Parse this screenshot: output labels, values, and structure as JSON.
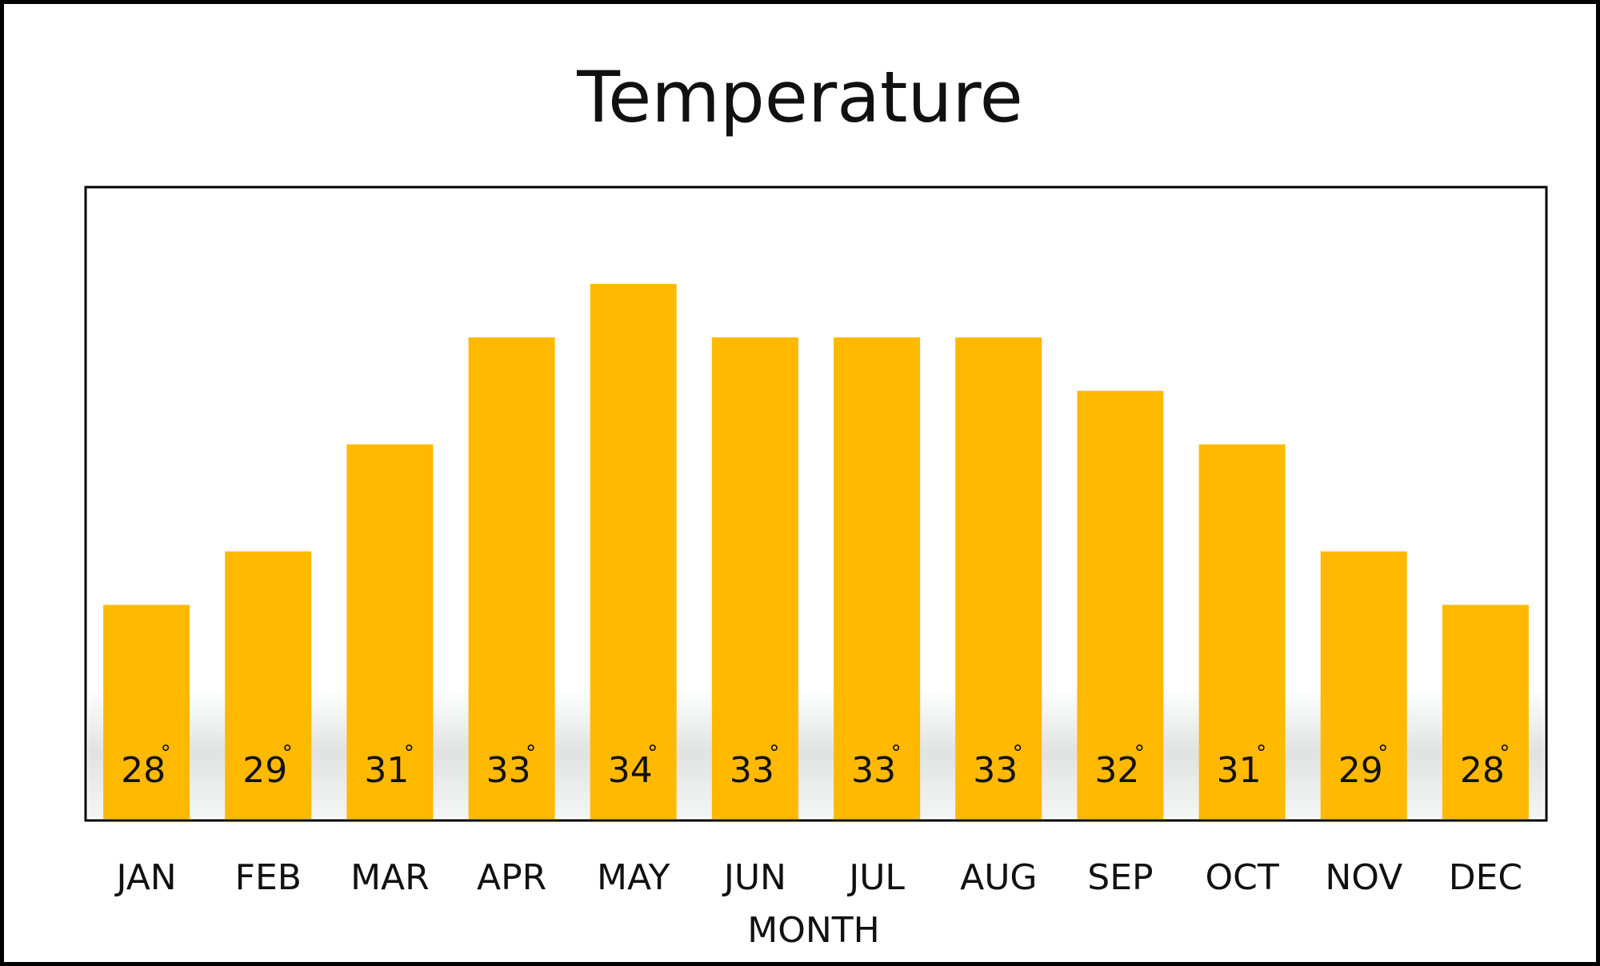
{
  "chart_data": {
    "type": "bar",
    "title": "Temperature",
    "xlabel": "MONTH",
    "ylabel": "",
    "categories": [
      "JAN",
      "FEB",
      "MAR",
      "APR",
      "MAY",
      "JUN",
      "JUL",
      "AUG",
      "SEP",
      "OCT",
      "NOV",
      "DEC"
    ],
    "values": [
      28,
      29,
      31,
      33,
      34,
      33,
      33,
      33,
      32,
      31,
      29,
      28
    ],
    "data_labels": [
      "28",
      "29",
      "31",
      "33",
      "34",
      "33",
      "33",
      "33",
      "32",
      "31",
      "29",
      "28"
    ],
    "unit_symbol": "°",
    "ylim": [
      0,
      40
    ],
    "bar_color": "#FFB900",
    "grid": false,
    "legend": "none"
  }
}
